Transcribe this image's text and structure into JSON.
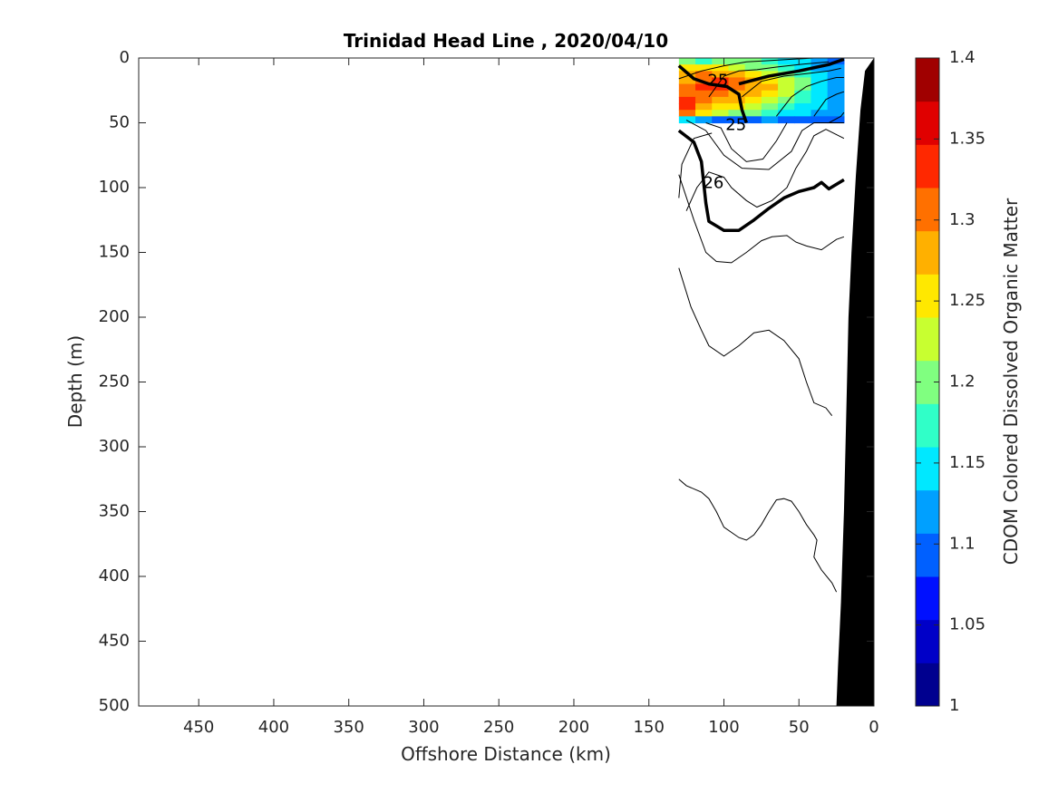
{
  "chart_data": {
    "type": "heatmap",
    "title": "Trinidad Head Line , 2020/04/10",
    "xlabel": "Offshore Distance (km)",
    "ylabel": "Depth (m)",
    "xlim": [
      490,
      0
    ],
    "ylim": [
      0,
      500
    ],
    "x_reversed": true,
    "y_reversed": true,
    "x_ticks": [
      450,
      400,
      350,
      300,
      250,
      200,
      150,
      100,
      50,
      0
    ],
    "y_ticks": [
      0,
      50,
      100,
      150,
      200,
      250,
      300,
      350,
      400,
      450,
      500
    ],
    "colorbar": {
      "label": "CDOM Colored Dissolved Organic Matter",
      "range": [
        1,
        1.4
      ],
      "ticks": [
        1,
        1.05,
        1.1,
        1.15,
        1.2,
        1.25,
        1.3,
        1.35,
        1.4
      ],
      "tick_labels": [
        "1",
        "1.05",
        "1.1",
        "1.15",
        "1.2",
        "1.25",
        "1.3",
        "1.35",
        "1.4"
      ],
      "colors": [
        "#00008f",
        "#0000c8",
        "#0010ff",
        "#0060ff",
        "#00a0ff",
        "#00e8ff",
        "#30ffc8",
        "#80ff80",
        "#c8ff30",
        "#ffe800",
        "#ffb000",
        "#ff7000",
        "#ff2800",
        "#e00000",
        "#a00000"
      ]
    },
    "heatmap": {
      "x_range": [
        130,
        20
      ],
      "depth_range": [
        0,
        50
      ],
      "x": [
        130,
        118,
        106,
        94,
        82,
        70,
        58,
        46,
        34,
        20
      ],
      "depth": [
        0,
        5,
        10,
        15,
        20,
        25,
        30,
        35,
        40,
        45
      ],
      "values": [
        [
          1.2,
          1.18,
          1.21,
          1.2,
          1.19,
          1.17,
          1.15,
          1.16,
          1.12,
          1.1
        ],
        [
          1.24,
          1.26,
          1.24,
          1.22,
          1.21,
          1.19,
          1.17,
          1.15,
          1.13,
          1.11
        ],
        [
          1.28,
          1.3,
          1.29,
          1.27,
          1.25,
          1.23,
          1.2,
          1.18,
          1.15,
          1.12
        ],
        [
          1.29,
          1.31,
          1.32,
          1.31,
          1.28,
          1.26,
          1.22,
          1.19,
          1.16,
          1.13
        ],
        [
          1.3,
          1.32,
          1.33,
          1.3,
          1.29,
          1.27,
          1.23,
          1.2,
          1.16,
          1.12
        ],
        [
          1.31,
          1.3,
          1.31,
          1.29,
          1.27,
          1.25,
          1.22,
          1.18,
          1.15,
          1.11
        ],
        [
          1.34,
          1.3,
          1.28,
          1.27,
          1.25,
          1.23,
          1.2,
          1.17,
          1.14,
          1.12
        ],
        [
          1.33,
          1.29,
          1.26,
          1.24,
          1.23,
          1.21,
          1.18,
          1.16,
          1.15,
          1.13
        ],
        [
          1.3,
          1.26,
          1.22,
          1.2,
          1.19,
          1.17,
          1.15,
          1.14,
          1.13,
          1.12
        ],
        [
          1.14,
          1.12,
          1.1,
          1.09,
          1.1,
          1.11,
          1.1,
          1.09,
          1.1,
          1.09
        ]
      ]
    },
    "bathymetry": [
      [
        25,
        500
      ],
      [
        24,
        470
      ],
      [
        22,
        420
      ],
      [
        20,
        350
      ],
      [
        19,
        300
      ],
      [
        17,
        200
      ],
      [
        15,
        150
      ],
      [
        12,
        90
      ],
      [
        9,
        40
      ],
      [
        6,
        10
      ],
      [
        0,
        0
      ],
      [
        0,
        500
      ]
    ],
    "contours": {
      "thin": [
        [
          [
            130,
            16
          ],
          [
            115,
            10
          ],
          [
            100,
            6
          ],
          [
            85,
            3
          ],
          [
            70,
            2
          ],
          [
            55,
            1
          ],
          [
            40,
            0
          ]
        ],
        [
          [
            110,
            30
          ],
          [
            100,
            14
          ],
          [
            90,
            10
          ],
          [
            78,
            9
          ],
          [
            65,
            7
          ],
          [
            50,
            5
          ],
          [
            30,
            3
          ]
        ],
        [
          [
            88,
            30
          ],
          [
            75,
            18
          ],
          [
            60,
            14
          ],
          [
            45,
            12
          ],
          [
            30,
            10
          ],
          [
            22,
            8
          ]
        ],
        [
          [
            65,
            45
          ],
          [
            55,
            30
          ],
          [
            45,
            22
          ],
          [
            35,
            18
          ],
          [
            25,
            15
          ],
          [
            20,
            15
          ]
        ],
        [
          [
            40,
            45
          ],
          [
            32,
            32
          ],
          [
            25,
            28
          ],
          [
            20,
            26
          ]
        ],
        [
          [
            30,
            50
          ],
          [
            22,
            45
          ],
          [
            20,
            42
          ]
        ],
        [
          [
            112,
            50
          ],
          [
            102,
            54
          ],
          [
            95,
            70
          ],
          [
            85,
            80
          ],
          [
            74,
            78
          ],
          [
            65,
            64
          ],
          [
            58,
            50
          ]
        ],
        [
          [
            125,
            48
          ],
          [
            112,
            56
          ],
          [
            100,
            75
          ],
          [
            88,
            85
          ],
          [
            70,
            86
          ],
          [
            55,
            72
          ],
          [
            48,
            56
          ],
          [
            40,
            50
          ],
          [
            30,
            50
          ],
          [
            20,
            50
          ]
        ],
        [
          [
            130,
            108
          ],
          [
            128,
            82
          ],
          [
            120,
            62
          ],
          [
            108,
            58
          ]
        ],
        [
          [
            125,
            118
          ],
          [
            118,
            100
          ],
          [
            110,
            88
          ],
          [
            100,
            92
          ],
          [
            95,
            100
          ],
          [
            85,
            110
          ],
          [
            78,
            115
          ],
          [
            68,
            110
          ],
          [
            58,
            100
          ],
          [
            52,
            85
          ],
          [
            45,
            72
          ],
          [
            40,
            60
          ],
          [
            32,
            55
          ],
          [
            20,
            62
          ]
        ],
        [
          [
            130,
            90
          ],
          [
            120,
            125
          ],
          [
            112,
            150
          ],
          [
            105,
            157
          ],
          [
            95,
            158
          ],
          [
            85,
            150
          ],
          [
            75,
            141
          ],
          [
            68,
            138
          ],
          [
            58,
            137
          ],
          [
            52,
            142
          ],
          [
            45,
            145
          ],
          [
            35,
            148
          ],
          [
            25,
            140
          ],
          [
            20,
            138
          ]
        ],
        [
          [
            130,
            162
          ],
          [
            122,
            192
          ],
          [
            115,
            210
          ],
          [
            110,
            222
          ],
          [
            100,
            230
          ],
          [
            90,
            222
          ],
          [
            80,
            212
          ],
          [
            70,
            210
          ],
          [
            60,
            218
          ],
          [
            50,
            232
          ],
          [
            45,
            250
          ],
          [
            40,
            266
          ],
          [
            32,
            270
          ],
          [
            28,
            276
          ]
        ],
        [
          [
            130,
            325
          ],
          [
            125,
            330
          ],
          [
            115,
            335
          ],
          [
            110,
            340
          ],
          [
            105,
            350
          ],
          [
            100,
            362
          ],
          [
            90,
            370
          ],
          [
            85,
            372
          ],
          [
            80,
            368
          ],
          [
            75,
            360
          ],
          [
            70,
            350
          ],
          [
            65,
            341
          ],
          [
            60,
            340
          ],
          [
            55,
            342
          ],
          [
            50,
            350
          ],
          [
            45,
            360
          ],
          [
            40,
            368
          ],
          [
            38,
            372
          ],
          [
            40,
            385
          ],
          [
            35,
            395
          ],
          [
            28,
            405
          ],
          [
            25,
            412
          ]
        ]
      ],
      "bold": [
        [
          [
            130,
            6
          ],
          [
            120,
            16
          ],
          [
            110,
            20
          ],
          [
            98,
            22
          ],
          [
            90,
            28
          ],
          [
            88,
            40
          ],
          [
            85,
            50
          ]
        ],
        [
          [
            90,
            20
          ],
          [
            70,
            14
          ],
          [
            50,
            10
          ],
          [
            30,
            5
          ],
          [
            20,
            1
          ]
        ],
        [
          [
            130,
            56
          ],
          [
            120,
            65
          ],
          [
            115,
            80
          ],
          [
            112,
            112
          ],
          [
            110,
            126
          ],
          [
            100,
            133
          ],
          [
            90,
            133
          ],
          [
            80,
            125
          ],
          [
            70,
            116
          ],
          [
            60,
            108
          ],
          [
            50,
            103
          ],
          [
            40,
            100
          ],
          [
            35,
            96
          ],
          [
            30,
            101
          ],
          [
            20,
            94
          ]
        ]
      ],
      "labels": [
        {
          "text": "25",
          "x": 104,
          "depth": 18
        },
        {
          "text": "25",
          "x": 92,
          "depth": 52
        },
        {
          "text": "26",
          "x": 107,
          "depth": 97
        }
      ]
    }
  }
}
